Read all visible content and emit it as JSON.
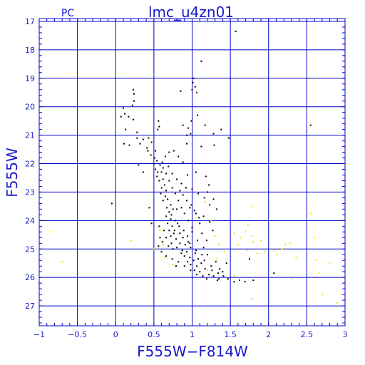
{
  "chart_data": {
    "type": "scatter",
    "title": "lmc_u4zn01",
    "corner_label": "PC",
    "xlabel": "F555W−F814W",
    "ylabel": "F555W",
    "xlim": [
      -1,
      3
    ],
    "ylim": [
      27.7,
      16.9
    ],
    "y_inverted": true,
    "grid": true,
    "x_ticks": [
      -1,
      -0.5,
      0,
      0.5,
      1,
      1.5,
      2,
      2.5,
      3
    ],
    "x_tick_labels": [
      "−1",
      "−0.5",
      "0",
      "0.5",
      "1",
      "1.5",
      "2",
      "2.5",
      "3"
    ],
    "y_ticks": [
      17,
      18,
      19,
      20,
      21,
      22,
      23,
      24,
      25,
      26,
      27
    ],
    "y_tick_labels": [
      "17",
      "18",
      "19",
      "20",
      "21",
      "22",
      "23",
      "24",
      "25",
      "26",
      "27"
    ],
    "colors": {
      "axes": "#0000cc",
      "grid": "#0000cc",
      "text": "#1a1acc",
      "primary_points": "#000000",
      "secondary_points": "#e8e800"
    },
    "series": [
      {
        "values": [
          [
            1.57,
            17.35
          ],
          [
            1.12,
            18.4
          ],
          [
            1.02,
            19.0
          ],
          [
            1.04,
            19.3
          ],
          [
            1.0,
            19.4
          ],
          [
            0.85,
            19.45
          ],
          [
            1.06,
            19.5
          ],
          [
            1.01,
            19.15
          ],
          [
            0.23,
            19.4
          ],
          [
            0.24,
            19.55
          ],
          [
            0.24,
            19.8
          ],
          [
            0.22,
            19.95
          ],
          [
            0.1,
            20.05
          ],
          [
            0.12,
            20.25
          ],
          [
            0.07,
            20.35
          ],
          [
            0.17,
            20.35
          ],
          [
            0.23,
            20.45
          ],
          [
            0.56,
            20.5
          ],
          [
            0.57,
            20.7
          ],
          [
            0.55,
            20.8
          ],
          [
            0.99,
            20.5
          ],
          [
            0.95,
            20.75
          ],
          [
            0.93,
            21.0
          ],
          [
            1.38,
            20.8
          ],
          [
            1.07,
            20.3
          ],
          [
            0.88,
            20.65
          ],
          [
            0.13,
            20.8
          ],
          [
            0.11,
            21.3
          ],
          [
            0.18,
            21.35
          ],
          [
            0.28,
            21.1
          ],
          [
            0.36,
            21.15
          ],
          [
            0.43,
            21.1
          ],
          [
            0.47,
            21.25
          ],
          [
            0.41,
            21.45
          ],
          [
            0.52,
            21.55
          ],
          [
            0.51,
            21.8
          ],
          [
            0.54,
            21.9
          ],
          [
            0.58,
            22.05
          ],
          [
            0.52,
            22.2
          ],
          [
            0.6,
            22.3
          ],
          [
            0.54,
            22.45
          ],
          [
            0.57,
            22.6
          ],
          [
            0.62,
            22.55
          ],
          [
            0.64,
            22.75
          ],
          [
            0.6,
            22.85
          ],
          [
            0.66,
            22.95
          ],
          [
            0.59,
            23.05
          ],
          [
            0.65,
            23.15
          ],
          [
            0.62,
            23.3
          ],
          [
            0.68,
            23.25
          ],
          [
            0.72,
            23.45
          ],
          [
            0.67,
            23.55
          ],
          [
            0.7,
            23.7
          ],
          [
            0.75,
            23.6
          ],
          [
            0.66,
            23.85
          ],
          [
            0.72,
            23.95
          ],
          [
            0.78,
            24.0
          ],
          [
            0.74,
            24.2
          ],
          [
            0.81,
            24.1
          ],
          [
            0.77,
            24.35
          ],
          [
            0.84,
            24.45
          ],
          [
            0.72,
            24.55
          ],
          [
            0.79,
            24.65
          ],
          [
            0.88,
            24.6
          ],
          [
            0.84,
            24.8
          ],
          [
            0.91,
            24.85
          ],
          [
            0.8,
            24.95
          ],
          [
            0.95,
            24.75
          ],
          [
            0.87,
            25.05
          ],
          [
            0.93,
            25.1
          ],
          [
            0.98,
            24.95
          ],
          [
            0.9,
            25.25
          ],
          [
            0.97,
            25.3
          ],
          [
            1.04,
            25.15
          ],
          [
            0.94,
            25.45
          ],
          [
            1.02,
            25.4
          ],
          [
            1.08,
            25.35
          ],
          [
            0.98,
            25.55
          ],
          [
            1.06,
            25.6
          ],
          [
            1.12,
            25.5
          ],
          [
            1.03,
            25.75
          ],
          [
            1.1,
            25.8
          ],
          [
            1.17,
            25.7
          ],
          [
            1.14,
            25.95
          ],
          [
            1.22,
            25.9
          ],
          [
            1.19,
            26.05
          ],
          [
            1.28,
            25.95
          ],
          [
            1.33,
            26.1
          ],
          [
            1.41,
            25.95
          ],
          [
            1.47,
            26.05
          ],
          [
            1.55,
            26.15
          ],
          [
            1.25,
            25.6
          ],
          [
            1.31,
            25.45
          ],
          [
            1.36,
            25.7
          ],
          [
            1.2,
            25.2
          ],
          [
            1.15,
            24.95
          ],
          [
            1.07,
            24.7
          ],
          [
            1.13,
            24.45
          ],
          [
            1.19,
            24.7
          ],
          [
            1.0,
            24.25
          ],
          [
            0.95,
            24.0
          ],
          [
            0.9,
            23.75
          ],
          [
            0.86,
            23.55
          ],
          [
            0.82,
            23.3
          ],
          [
            0.78,
            23.05
          ],
          [
            0.74,
            22.85
          ],
          [
            0.7,
            22.6
          ],
          [
            0.66,
            22.35
          ],
          [
            0.62,
            22.15
          ],
          [
            0.61,
            21.95
          ],
          [
            0.65,
            21.75
          ],
          [
            0.7,
            21.6
          ],
          [
            0.76,
            21.55
          ],
          [
            0.82,
            21.75
          ],
          [
            0.88,
            21.95
          ],
          [
            0.94,
            22.4
          ],
          [
            1.05,
            22.3
          ],
          [
            1.18,
            22.45
          ],
          [
            1.22,
            22.75
          ],
          [
            1.2,
            23.0
          ],
          [
            1.28,
            23.25
          ],
          [
            1.32,
            23.6
          ],
          [
            1.23,
            23.45
          ],
          [
            1.16,
            23.2
          ],
          [
            1.08,
            23.05
          ],
          [
            1.0,
            22.9
          ],
          [
            0.92,
            22.85
          ],
          [
            0.84,
            22.95
          ],
          [
            0.8,
            23.6
          ],
          [
            0.73,
            23.8
          ],
          [
            0.68,
            24.1
          ],
          [
            0.63,
            24.35
          ],
          [
            0.58,
            24.6
          ],
          [
            0.56,
            24.9
          ],
          [
            0.6,
            25.1
          ],
          [
            0.66,
            25.25
          ],
          [
            0.74,
            25.35
          ],
          [
            0.82,
            25.45
          ],
          [
            0.9,
            25.6
          ],
          [
            0.98,
            25.75
          ],
          [
            1.06,
            25.9
          ],
          [
            1.35,
            26.05
          ],
          [
            1.62,
            26.1
          ],
          [
            1.75,
            25.35
          ],
          [
            1.8,
            26.1
          ],
          [
            1.69,
            26.15
          ],
          [
            0.3,
            22.05
          ],
          [
            0.36,
            22.3
          ],
          [
            0.44,
            23.55
          ],
          [
            -0.05,
            23.4
          ],
          [
            0.47,
            24.1
          ],
          [
            0.57,
            24.2
          ],
          [
            0.61,
            24.75
          ],
          [
            0.69,
            24.9
          ],
          [
            0.75,
            25.0
          ],
          [
            0.86,
            25.15
          ],
          [
            0.79,
            25.6
          ],
          [
            1.4,
            25.8
          ],
          [
            1.45,
            25.5
          ],
          [
            0.97,
            23.55
          ],
          [
            1.05,
            23.75
          ],
          [
            1.1,
            24.1
          ],
          [
            1.27,
            24.35
          ],
          [
            1.23,
            24.05
          ],
          [
            1.15,
            23.85
          ],
          [
            1.12,
            21.4
          ],
          [
            1.29,
            21.35
          ],
          [
            1.17,
            20.65
          ],
          [
            1.28,
            20.95
          ],
          [
            0.93,
            21.3
          ],
          [
            0.98,
            20.95
          ],
          [
            0.28,
            20.9
          ],
          [
            0.32,
            21.3
          ],
          [
            0.42,
            21.55
          ],
          [
            0.46,
            21.7
          ],
          [
            0.5,
            22.0
          ],
          [
            0.55,
            22.3
          ],
          [
            0.69,
            22.1
          ],
          [
            0.74,
            22.35
          ],
          [
            0.8,
            22.55
          ],
          [
            0.86,
            22.7
          ],
          [
            0.88,
            23.1
          ],
          [
            0.93,
            23.3
          ],
          [
            0.99,
            23.45
          ],
          [
            1.03,
            23.65
          ],
          [
            1.09,
            23.9
          ],
          [
            1.0,
            24.4
          ],
          [
            0.94,
            24.55
          ],
          [
            0.89,
            24.35
          ],
          [
            0.83,
            24.2
          ],
          [
            0.76,
            24.45
          ],
          [
            0.7,
            24.35
          ],
          [
            0.66,
            24.6
          ],
          [
            0.73,
            24.8
          ],
          [
            0.97,
            24.8
          ],
          [
            1.05,
            25.05
          ],
          [
            1.13,
            25.2
          ],
          [
            1.16,
            25.4
          ],
          [
            1.26,
            25.75
          ],
          [
            1.34,
            25.85
          ],
          [
            2.55,
            20.65
          ],
          [
            2.07,
            25.85
          ],
          [
            1.48,
            21.1
          ]
        ]
      },
      {
        "values": [
          [
            -0.85,
            24.4
          ],
          [
            -0.7,
            25.45
          ],
          [
            0.2,
            24.7
          ],
          [
            0.58,
            24.35
          ],
          [
            0.62,
            24.85
          ],
          [
            0.75,
            25.55
          ],
          [
            1.05,
            23.9
          ],
          [
            1.17,
            23.35
          ],
          [
            1.25,
            24.0
          ],
          [
            1.3,
            24.55
          ],
          [
            1.35,
            24.85
          ],
          [
            1.42,
            25.1
          ],
          [
            1.55,
            24.45
          ],
          [
            1.6,
            24.85
          ],
          [
            1.63,
            24.6
          ],
          [
            1.7,
            24.35
          ],
          [
            1.73,
            24.15
          ],
          [
            1.79,
            23.5
          ],
          [
            1.75,
            23.9
          ],
          [
            1.78,
            24.55
          ],
          [
            1.8,
            24.75
          ],
          [
            1.72,
            25.05
          ],
          [
            1.85,
            25.15
          ],
          [
            1.9,
            24.7
          ],
          [
            1.95,
            25.1
          ],
          [
            2.07,
            25.05
          ],
          [
            2.11,
            25.2
          ],
          [
            2.18,
            25.0
          ],
          [
            2.22,
            24.85
          ],
          [
            2.28,
            24.8
          ],
          [
            2.36,
            25.3
          ],
          [
            2.55,
            23.75
          ],
          [
            2.6,
            24.6
          ],
          [
            2.62,
            25.4
          ],
          [
            2.66,
            25.85
          ],
          [
            2.7,
            26.6
          ],
          [
            2.8,
            25.5
          ],
          [
            2.9,
            26.9
          ],
          [
            2.95,
            26.6
          ],
          [
            1.32,
            25.35
          ],
          [
            1.55,
            25.95
          ],
          [
            1.78,
            26.75
          ],
          [
            2.3,
            26.05
          ],
          [
            1.2,
            25.75
          ],
          [
            0.5,
            25.0
          ],
          [
            0.64,
            25.3
          ]
        ]
      }
    ]
  }
}
